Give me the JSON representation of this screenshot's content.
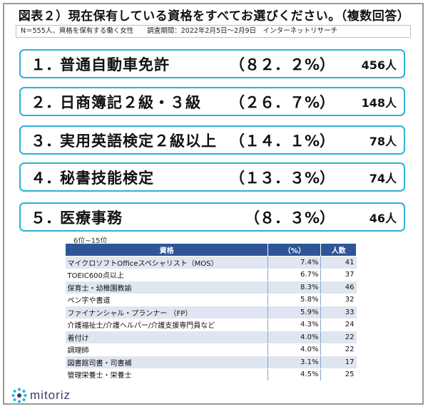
{
  "title": "図表２）現在保有している資格をすべてお選びください。（複数回答）",
  "subtitle": "N＝555人、資格を保有する働く女性　　調査期間：2022年2月5日～2月9日　インターネットリサーチ",
  "chart_data": [
    {
      "type": "table",
      "title": "",
      "columns": [
        "",
        "",
        ""
      ],
      "rows": [
        {
          "rank": "１．",
          "name": "普通自動車免許",
          "pct_label": "（８２．２%）",
          "count_label": "456人",
          "pct": 82.2,
          "count": 456
        },
        {
          "rank": "２．",
          "name": "日商簿記２級・３級",
          "pct_label": "（２６．７%）",
          "count_label": "148人",
          "pct": 26.7,
          "count": 148
        },
        {
          "rank": "３．",
          "name": "実用英語検定２級以上",
          "pct_label": "（１４．１%）",
          "count_label": "78人",
          "pct": 14.1,
          "count": 78
        },
        {
          "rank": "４．",
          "name": "秘書技能検定",
          "pct_label": "（１３．３%）",
          "count_label": "74人",
          "pct": 13.3,
          "count": 74
        },
        {
          "rank": "５．",
          "name": "医療事務",
          "pct_label": "（８．３%）",
          "count_label": "46人",
          "pct": 8.3,
          "count": 46
        }
      ]
    },
    {
      "type": "table",
      "title": "6位~15位",
      "columns": [
        "資格",
        "（%）",
        "人数"
      ],
      "rows": [
        {
          "name": "マイクロソフトOfficeスペシャリスト（MOS）",
          "pct": "7.4%",
          "count": "41"
        },
        {
          "name": "TOEIC600点以上",
          "pct": "6.7%",
          "count": "37"
        },
        {
          "name": "保育士・幼稚園教諭",
          "pct": "8.3%",
          "count": "46"
        },
        {
          "name": "ペン字や書道",
          "pct": "5.8%",
          "count": "32"
        },
        {
          "name": "ファイナンシャル・プランナー （FP）",
          "pct": "5.9%",
          "count": "33"
        },
        {
          "name": "介護福祉士/介護ヘルパー/介護支援専門員など",
          "pct": "4.3%",
          "count": "24"
        },
        {
          "name": "着付け",
          "pct": "4.0%",
          "count": "22"
        },
        {
          "name": "調理師",
          "pct": "4.0%",
          "count": "22"
        },
        {
          "name": "図書館司書・司書補",
          "pct": "3.1%",
          "count": "17"
        },
        {
          "name": "管理栄養士・栄養士",
          "pct": "4.5%",
          "count": "25"
        }
      ]
    }
  ],
  "logo": {
    "text": "mitoriz",
    "icon": "mitoriz-logo-dots-icon"
  },
  "colors": {
    "rank_border": "#2ab3d6",
    "table_header": "#2f5597",
    "table_stripe": "#dfe6f2"
  }
}
